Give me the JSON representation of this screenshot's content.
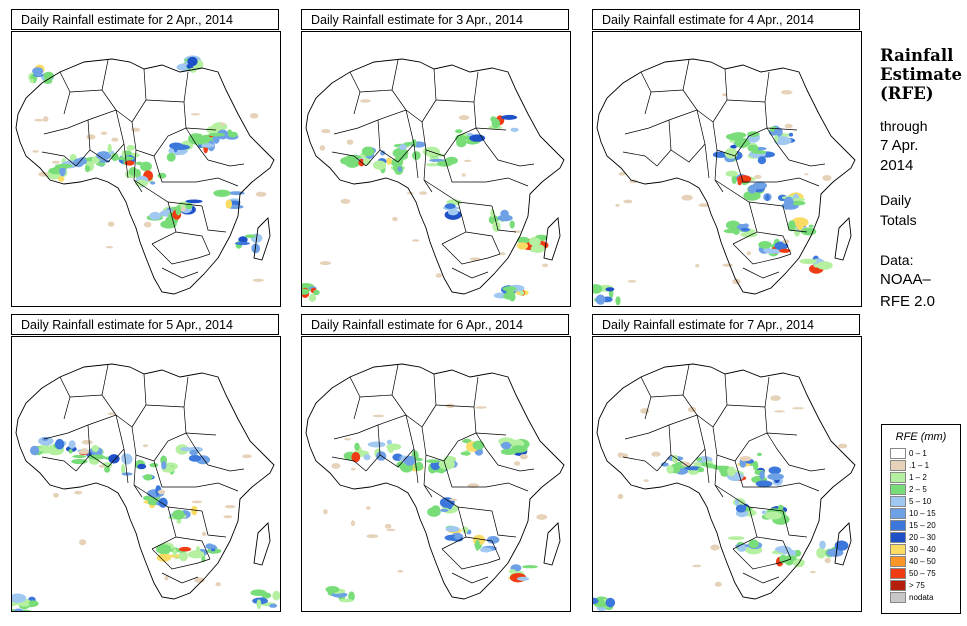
{
  "panels": [
    {
      "title": "Daily Rainfall estimate for  2 Apr., 2014",
      "date": "2 Apr., 2014"
    },
    {
      "title": "Daily Rainfall estimate for  3 Apr., 2014",
      "date": "3 Apr., 2014"
    },
    {
      "title": "Daily Rainfall estimate for  4 Apr., 2014",
      "date": "4 Apr., 2014"
    },
    {
      "title": "Daily Rainfall estimate for  5 Apr., 2014",
      "date": "5 Apr., 2014"
    },
    {
      "title": "Daily Rainfall estimate for  6 Apr., 2014",
      "date": "6 Apr., 2014"
    },
    {
      "title": "Daily Rainfall estimate for  7 Apr., 2014",
      "date": "7 Apr., 2014"
    }
  ],
  "sidebar": {
    "title_line1": "Rainfall",
    "title_line2": "Estimate",
    "title_line3": "(RFE)",
    "through_label": "through",
    "through_date_line1": "7 Apr.",
    "through_date_line2": "2014",
    "daily_line1": "Daily",
    "daily_line2": "Totals",
    "data_line1": "Data:",
    "data_line2": "NOAA–",
    "data_line3": "RFE 2.0"
  },
  "legend": {
    "title": "RFE (mm)",
    "items": [
      {
        "label": "0 – 1",
        "color": "#ffffff"
      },
      {
        "label": ".1 – 1",
        "color": "#e6d2b9"
      },
      {
        "label": "1 – 2",
        "color": "#b4f0a0"
      },
      {
        "label": "2 – 5",
        "color": "#78dc78"
      },
      {
        "label": "5 – 10",
        "color": "#a0c8f0"
      },
      {
        "label": "10 – 15",
        "color": "#6ea0e6"
      },
      {
        "label": "15 – 20",
        "color": "#3c78dc"
      },
      {
        "label": "20 – 30",
        "color": "#1e50c8"
      },
      {
        "label": "30 – 40",
        "color": "#fadc64"
      },
      {
        "label": "40 – 50",
        "color": "#fa9628"
      },
      {
        "label": "50 – 75",
        "color": "#f03c14"
      },
      {
        "label": "> 75",
        "color": "#b41e0a"
      },
      {
        "label": "nodata",
        "color": "#c8c8c8"
      }
    ]
  }
}
